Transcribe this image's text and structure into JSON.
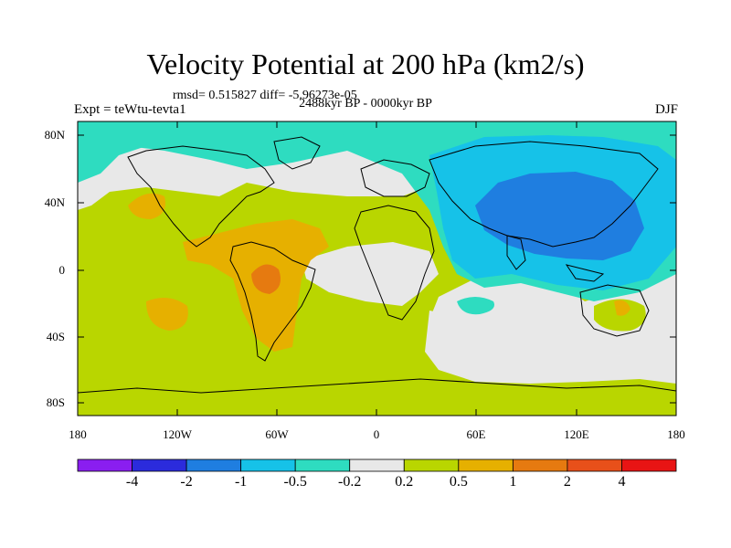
{
  "title": "Velocity Potential at 200 hPa (km2/s)",
  "stats_text": "rmsd= 0.515827 diff= -5.96273e-05",
  "period": "2488kyr BP - 0000kyr BP",
  "experiment": "Expt = teWtu-tevta1",
  "season": "DJF",
  "y_axis_labels": [
    "80N",
    "40N",
    "0",
    "40S",
    "80S"
  ],
  "x_axis_labels": [
    "180",
    "120W",
    "60W",
    "0",
    "60E",
    "120E",
    "180"
  ],
  "colorbar": {
    "labels": [
      "-4",
      "-2",
      "-1",
      "-0.5",
      "-0.2",
      "0.2",
      "0.5",
      "1",
      "2",
      "4"
    ],
    "colors": [
      "#8a1ef0",
      "#2b2bdc",
      "#1f7ee0",
      "#16c2e8",
      "#2edcc0",
      "#e8e8e8",
      "#b9d600",
      "#e6b000",
      "#e67a10",
      "#e8501a",
      "#e81414"
    ]
  },
  "palette": {
    "background_green": "#b9d600",
    "neutral": "#e8e8e8",
    "teal": "#2edcc0",
    "cyan": "#16c2e8",
    "blue": "#1f7ee0",
    "orange": "#e6b000",
    "dark_orange": "#e67a10"
  }
}
